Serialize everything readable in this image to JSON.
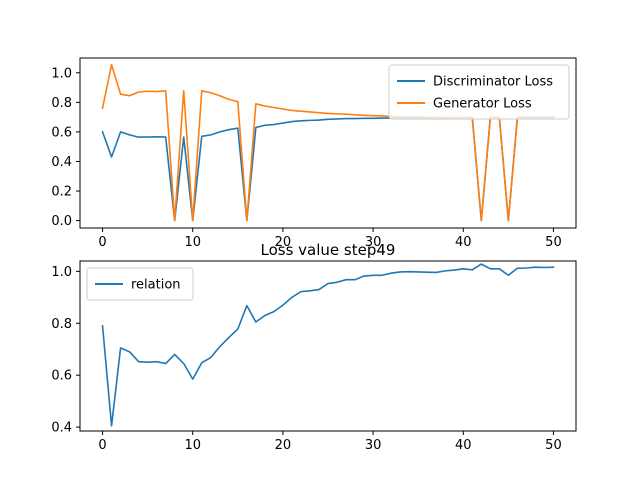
{
  "chart_data": [
    {
      "type": "line",
      "title": "",
      "xlabel": "",
      "ylabel": "",
      "xlim": [
        -2.5,
        52.5
      ],
      "ylim": [
        -0.05,
        1.1
      ],
      "xticks": [
        0,
        10,
        20,
        30,
        40,
        50
      ],
      "xtick_labels": [
        "0",
        "10",
        "20",
        "30",
        "40",
        "50"
      ],
      "yticks": [
        0.0,
        0.2,
        0.4,
        0.6,
        0.8,
        1.0
      ],
      "ytick_labels": [
        "0.0",
        "0.2",
        "0.4",
        "0.6",
        "0.8",
        "1.0"
      ],
      "grid": false,
      "legend_position": "top-right",
      "x": [
        0,
        1,
        2,
        3,
        4,
        5,
        6,
        7,
        8,
        9,
        10,
        11,
        12,
        13,
        14,
        15,
        16,
        17,
        18,
        19,
        20,
        21,
        22,
        23,
        24,
        25,
        26,
        27,
        28,
        29,
        30,
        31,
        32,
        33,
        34,
        35,
        36,
        37,
        38,
        39,
        40,
        41,
        42,
        43,
        44,
        45,
        46,
        47,
        48,
        49,
        50
      ],
      "series": [
        {
          "name": "Discriminator Loss",
          "color": "#1f77b4",
          "values": [
            0.6,
            0.43,
            0.6,
            0.58,
            0.565,
            0.565,
            0.567,
            0.565,
            0.0,
            0.565,
            0.0,
            0.57,
            0.58,
            0.6,
            0.615,
            0.625,
            0.0,
            0.63,
            0.645,
            0.65,
            0.66,
            0.67,
            0.675,
            0.678,
            0.68,
            0.685,
            0.688,
            0.69,
            0.69,
            0.692,
            0.692,
            0.694,
            0.694,
            0.695,
            0.696,
            0.696,
            0.696,
            0.697,
            0.697,
            0.697,
            0.697,
            0.698,
            0.0,
            0.698,
            0.698,
            0.0,
            0.698,
            0.699,
            0.699,
            0.699,
            0.7
          ]
        },
        {
          "name": "Generator Loss",
          "color": "#ff7f0e",
          "values": [
            0.76,
            1.055,
            0.855,
            0.845,
            0.87,
            0.875,
            0.873,
            0.877,
            0.0,
            0.878,
            0.0,
            0.878,
            0.865,
            0.845,
            0.82,
            0.805,
            0.0,
            0.79,
            0.775,
            0.765,
            0.755,
            0.745,
            0.74,
            0.735,
            0.73,
            0.725,
            0.722,
            0.72,
            0.716,
            0.712,
            0.71,
            0.708,
            0.705,
            0.703,
            0.702,
            0.701,
            0.7,
            0.7,
            0.699,
            0.698,
            0.697,
            0.696,
            0.0,
            0.695,
            0.695,
            0.0,
            0.694,
            0.694,
            0.693,
            0.693,
            0.692
          ]
        }
      ]
    },
    {
      "type": "line",
      "title": "Loss value step49",
      "xlabel": "",
      "ylabel": "",
      "xlim": [
        -2.5,
        52.5
      ],
      "ylim": [
        0.385,
        1.04
      ],
      "xticks": [
        0,
        10,
        20,
        30,
        40,
        50
      ],
      "xtick_labels": [
        "0",
        "10",
        "20",
        "30",
        "40",
        "50"
      ],
      "yticks": [
        0.4,
        0.6,
        0.8,
        1.0
      ],
      "ytick_labels": [
        "0.4",
        "0.6",
        "0.8",
        "1.0"
      ],
      "grid": false,
      "legend_position": "top-left",
      "x": [
        0,
        1,
        2,
        3,
        4,
        5,
        6,
        7,
        8,
        9,
        10,
        11,
        12,
        13,
        14,
        15,
        16,
        17,
        18,
        19,
        20,
        21,
        22,
        23,
        24,
        25,
        26,
        27,
        28,
        29,
        30,
        31,
        32,
        33,
        34,
        35,
        36,
        37,
        38,
        39,
        40,
        41,
        42,
        43,
        44,
        45,
        46,
        47,
        48,
        49,
        50
      ],
      "series": [
        {
          "name": "relation",
          "color": "#1f77b4",
          "values": [
            0.79,
            0.405,
            0.705,
            0.69,
            0.652,
            0.65,
            0.652,
            0.645,
            0.68,
            0.645,
            0.585,
            0.648,
            0.668,
            0.71,
            0.745,
            0.778,
            0.868,
            0.805,
            0.83,
            0.845,
            0.87,
            0.9,
            0.922,
            0.925,
            0.93,
            0.953,
            0.958,
            0.968,
            0.968,
            0.982,
            0.985,
            0.985,
            0.993,
            0.998,
            0.999,
            0.998,
            0.997,
            0.996,
            1.002,
            1.005,
            1.01,
            1.006,
            1.028,
            1.01,
            1.01,
            0.985,
            1.012,
            1.013,
            1.016,
            1.015,
            1.016
          ]
        }
      ]
    }
  ]
}
